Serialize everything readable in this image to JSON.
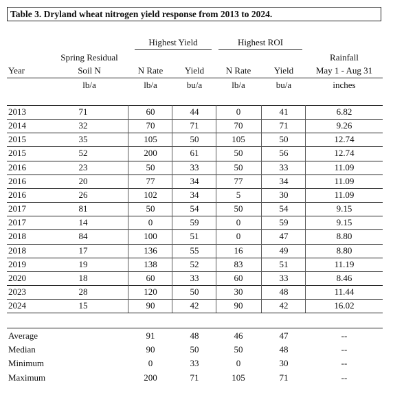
{
  "title": "Table 3. Dryland wheat nitrogen yield response from 2013 to 2024.",
  "headers": {
    "group_yield": "Highest Yield",
    "group_roi": "Highest ROI",
    "year": "Year",
    "soil_n_line1": "Spring Residual",
    "soil_n_line2": "Soil N",
    "n_rate_yield": "N Rate",
    "yield_yield": "Yield",
    "n_rate_roi": "N Rate",
    "yield_roi": "Yield",
    "rain_line1": "Rainfall",
    "rain_line2": "May 1 - Aug 31"
  },
  "units": {
    "soil_n": "lb/a",
    "n_rate_yield": "lb/a",
    "yield_yield": "bu/a",
    "n_rate_roi": "lb/a",
    "yield_roi": "bu/a",
    "rain": "inches"
  },
  "rows": [
    {
      "year": "2013",
      "soil_n": "71",
      "hy_n": "60",
      "hy_yield": "44",
      "roi_n": "0",
      "roi_yield": "41",
      "rain": "6.82"
    },
    {
      "year": "2014",
      "soil_n": "32",
      "hy_n": "70",
      "hy_yield": "71",
      "roi_n": "70",
      "roi_yield": "71",
      "rain": "9.26"
    },
    {
      "year": "2015",
      "soil_n": "35",
      "hy_n": "105",
      "hy_yield": "50",
      "roi_n": "105",
      "roi_yield": "50",
      "rain": "12.74"
    },
    {
      "year": "2015",
      "soil_n": "52",
      "hy_n": "200",
      "hy_yield": "61",
      "roi_n": "50",
      "roi_yield": "56",
      "rain": "12.74"
    },
    {
      "year": "2016",
      "soil_n": "23",
      "hy_n": "50",
      "hy_yield": "33",
      "roi_n": "50",
      "roi_yield": "33",
      "rain": "11.09"
    },
    {
      "year": "2016",
      "soil_n": "20",
      "hy_n": "77",
      "hy_yield": "34",
      "roi_n": "77",
      "roi_yield": "34",
      "rain": "11.09"
    },
    {
      "year": "2016",
      "soil_n": "26",
      "hy_n": "102",
      "hy_yield": "34",
      "roi_n": "5",
      "roi_yield": "30",
      "rain": "11.09"
    },
    {
      "year": "2017",
      "soil_n": "81",
      "hy_n": "50",
      "hy_yield": "54",
      "roi_n": "50",
      "roi_yield": "54",
      "rain": "9.15"
    },
    {
      "year": "2017",
      "soil_n": "14",
      "hy_n": "0",
      "hy_yield": "59",
      "roi_n": "0",
      "roi_yield": "59",
      "rain": "9.15"
    },
    {
      "year": "2018",
      "soil_n": "84",
      "hy_n": "100",
      "hy_yield": "51",
      "roi_n": "0",
      "roi_yield": "47",
      "rain": "8.80"
    },
    {
      "year": "2018",
      "soil_n": "17",
      "hy_n": "136",
      "hy_yield": "55",
      "roi_n": "16",
      "roi_yield": "49",
      "rain": "8.80"
    },
    {
      "year": "2019",
      "soil_n": "19",
      "hy_n": "138",
      "hy_yield": "52",
      "roi_n": "83",
      "roi_yield": "51",
      "rain": "11.19"
    },
    {
      "year": "2020",
      "soil_n": "18",
      "hy_n": "60",
      "hy_yield": "33",
      "roi_n": "60",
      "roi_yield": "33",
      "rain": "8.46"
    },
    {
      "year": "2023",
      "soil_n": "28",
      "hy_n": "120",
      "hy_yield": "50",
      "roi_n": "30",
      "roi_yield": "48",
      "rain": "11.44"
    },
    {
      "year": "2024",
      "soil_n": "15",
      "hy_n": "90",
      "hy_yield": "42",
      "roi_n": "90",
      "roi_yield": "42",
      "rain": "16.02"
    }
  ],
  "summary": [
    {
      "label": "Average",
      "hy_n": "91",
      "hy_yield": "48",
      "roi_n": "46",
      "roi_yield": "47",
      "rain": "--"
    },
    {
      "label": "Median",
      "hy_n": "90",
      "hy_yield": "50",
      "roi_n": "50",
      "roi_yield": "48",
      "rain": "--"
    },
    {
      "label": "Minimum",
      "hy_n": "0",
      "hy_yield": "33",
      "roi_n": "0",
      "roi_yield": "30",
      "rain": "--"
    },
    {
      "label": "Maximum",
      "hy_n": "200",
      "hy_yield": "71",
      "roi_n": "105",
      "roi_yield": "71",
      "rain": "--"
    }
  ]
}
